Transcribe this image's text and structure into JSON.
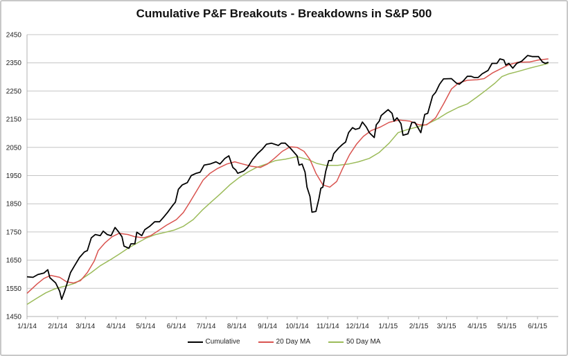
{
  "chart_data": {
    "type": "line",
    "title": "Cumulative P&F Breakouts - Breakdowns in S&P 500",
    "xlabel": "",
    "ylabel": "",
    "ylim": [
      1450,
      2450
    ],
    "xlim_days": [
      0,
      537
    ],
    "grid": true,
    "legend_position": "bottom",
    "y_ticks": [
      "1450",
      "1550",
      "1650",
      "1750",
      "1850",
      "1950",
      "2050",
      "2150",
      "2250",
      "2350",
      "2450"
    ],
    "x_ticks": [
      {
        "label": "1/1/14",
        "day": 0
      },
      {
        "label": "2/1/14",
        "day": 31
      },
      {
        "label": "3/1/14",
        "day": 59
      },
      {
        "label": "4/1/14",
        "day": 90
      },
      {
        "label": "5/1/14",
        "day": 120
      },
      {
        "label": "6/1/14",
        "day": 151
      },
      {
        "label": "7/1/14",
        "day": 181
      },
      {
        "label": "8/1/14",
        "day": 212
      },
      {
        "label": "9/1/14",
        "day": 243
      },
      {
        "label": "10/1/14",
        "day": 273
      },
      {
        "label": "11/1/14",
        "day": 304
      },
      {
        "label": "12/1/14",
        "day": 334
      },
      {
        "label": "1/1/15",
        "day": 365
      },
      {
        "label": "2/1/15",
        "day": 396
      },
      {
        "label": "3/1/15",
        "day": 424
      },
      {
        "label": "4/1/15",
        "day": 455
      },
      {
        "label": "5/1/15",
        "day": 485
      },
      {
        "label": "6/1/15",
        "day": 516
      }
    ],
    "series": [
      {
        "name": "Cumulative",
        "color": "#000000",
        "points": [
          [
            0,
            1591
          ],
          [
            6,
            1589
          ],
          [
            11,
            1599
          ],
          [
            17,
            1604
          ],
          [
            21,
            1616
          ],
          [
            23,
            1588
          ],
          [
            29,
            1569
          ],
          [
            33,
            1540
          ],
          [
            35,
            1511
          ],
          [
            38,
            1540
          ],
          [
            41,
            1573
          ],
          [
            44,
            1606
          ],
          [
            48,
            1630
          ],
          [
            53,
            1659
          ],
          [
            58,
            1679
          ],
          [
            61,
            1684
          ],
          [
            65,
            1729
          ],
          [
            69,
            1741
          ],
          [
            74,
            1737
          ],
          [
            77,
            1753
          ],
          [
            81,
            1741
          ],
          [
            85,
            1737
          ],
          [
            89,
            1766
          ],
          [
            92,
            1753
          ],
          [
            96,
            1733
          ],
          [
            98,
            1700
          ],
          [
            103,
            1692
          ],
          [
            105,
            1708
          ],
          [
            109,
            1708
          ],
          [
            111,
            1749
          ],
          [
            116,
            1737
          ],
          [
            119,
            1758
          ],
          [
            124,
            1770
          ],
          [
            129,
            1786
          ],
          [
            134,
            1786
          ],
          [
            138,
            1802
          ],
          [
            142,
            1819
          ],
          [
            147,
            1843
          ],
          [
            150,
            1856
          ],
          [
            153,
            1901
          ],
          [
            157,
            1917
          ],
          [
            162,
            1925
          ],
          [
            166,
            1950
          ],
          [
            171,
            1958
          ],
          [
            175,
            1962
          ],
          [
            179,
            1987
          ],
          [
            185,
            1991
          ],
          [
            191,
            1999
          ],
          [
            195,
            1991
          ],
          [
            200,
            2011
          ],
          [
            204,
            2020
          ],
          [
            208,
            1979
          ],
          [
            211,
            1970
          ],
          [
            213,
            1958
          ],
          [
            219,
            1966
          ],
          [
            223,
            1979
          ],
          [
            228,
            2007
          ],
          [
            233,
            2028
          ],
          [
            238,
            2044
          ],
          [
            242,
            2061
          ],
          [
            247,
            2065
          ],
          [
            254,
            2057
          ],
          [
            257,
            2065
          ],
          [
            261,
            2065
          ],
          [
            266,
            2048
          ],
          [
            270,
            2032
          ],
          [
            273,
            2020
          ],
          [
            275,
            1987
          ],
          [
            278,
            1991
          ],
          [
            281,
            1962
          ],
          [
            283,
            1909
          ],
          [
            286,
            1876
          ],
          [
            288,
            1820
          ],
          [
            292,
            1823
          ],
          [
            295,
            1868
          ],
          [
            297,
            1905
          ],
          [
            299,
            1909
          ],
          [
            302,
            1966
          ],
          [
            305,
            2003
          ],
          [
            308,
            2003
          ],
          [
            310,
            2028
          ],
          [
            315,
            2048
          ],
          [
            319,
            2061
          ],
          [
            322,
            2069
          ],
          [
            325,
            2102
          ],
          [
            329,
            2120
          ],
          [
            332,
            2114
          ],
          [
            336,
            2118
          ],
          [
            339,
            2140
          ],
          [
            343,
            2122
          ],
          [
            346,
            2102
          ],
          [
            351,
            2085
          ],
          [
            353,
            2130
          ],
          [
            356,
            2143
          ],
          [
            358,
            2163
          ],
          [
            362,
            2175
          ],
          [
            365,
            2184
          ],
          [
            369,
            2171
          ],
          [
            371,
            2143
          ],
          [
            374,
            2155
          ],
          [
            378,
            2134
          ],
          [
            380,
            2093
          ],
          [
            385,
            2098
          ],
          [
            389,
            2139
          ],
          [
            392,
            2139
          ],
          [
            398,
            2102
          ],
          [
            402,
            2167
          ],
          [
            405,
            2171
          ],
          [
            410,
            2233
          ],
          [
            413,
            2245
          ],
          [
            417,
            2274
          ],
          [
            421,
            2293
          ],
          [
            429,
            2294
          ],
          [
            434,
            2278
          ],
          [
            437,
            2274
          ],
          [
            441,
            2286
          ],
          [
            445,
            2302
          ],
          [
            449,
            2302
          ],
          [
            452,
            2298
          ],
          [
            456,
            2298
          ],
          [
            460,
            2311
          ],
          [
            466,
            2323
          ],
          [
            470,
            2348
          ],
          [
            475,
            2348
          ],
          [
            478,
            2364
          ],
          [
            482,
            2360
          ],
          [
            484,
            2342
          ],
          [
            487,
            2348
          ],
          [
            491,
            2331
          ],
          [
            495,
            2348
          ],
          [
            500,
            2356
          ],
          [
            506,
            2376
          ],
          [
            511,
            2372
          ],
          [
            517,
            2372
          ],
          [
            521,
            2353
          ],
          [
            524,
            2348
          ],
          [
            527,
            2352
          ]
        ]
      },
      {
        "name": "20 Day MA",
        "color": "#d9534f",
        "points": [
          [
            0,
            1532
          ],
          [
            10,
            1565
          ],
          [
            17,
            1585
          ],
          [
            24,
            1596
          ],
          [
            33,
            1589
          ],
          [
            40,
            1573
          ],
          [
            47,
            1569
          ],
          [
            54,
            1577
          ],
          [
            61,
            1606
          ],
          [
            68,
            1647
          ],
          [
            72,
            1684
          ],
          [
            79,
            1712
          ],
          [
            86,
            1733
          ],
          [
            93,
            1745
          ],
          [
            102,
            1741
          ],
          [
            109,
            1733
          ],
          [
            118,
            1729
          ],
          [
            125,
            1737
          ],
          [
            132,
            1753
          ],
          [
            141,
            1774
          ],
          [
            151,
            1794
          ],
          [
            158,
            1819
          ],
          [
            164,
            1852
          ],
          [
            171,
            1893
          ],
          [
            178,
            1934
          ],
          [
            185,
            1958
          ],
          [
            192,
            1974
          ],
          [
            202,
            1991
          ],
          [
            210,
            1999
          ],
          [
            218,
            1991
          ],
          [
            227,
            1983
          ],
          [
            236,
            1979
          ],
          [
            243,
            1991
          ],
          [
            250,
            2011
          ],
          [
            258,
            2036
          ],
          [
            266,
            2052
          ],
          [
            273,
            2050
          ],
          [
            280,
            2036
          ],
          [
            286,
            2007
          ],
          [
            292,
            1958
          ],
          [
            299,
            1917
          ],
          [
            306,
            1909
          ],
          [
            313,
            1929
          ],
          [
            319,
            1975
          ],
          [
            326,
            2024
          ],
          [
            333,
            2061
          ],
          [
            340,
            2089
          ],
          [
            348,
            2110
          ],
          [
            357,
            2122
          ],
          [
            366,
            2139
          ],
          [
            376,
            2147
          ],
          [
            387,
            2143
          ],
          [
            396,
            2130
          ],
          [
            404,
            2130
          ],
          [
            413,
            2155
          ],
          [
            421,
            2204
          ],
          [
            429,
            2257
          ],
          [
            436,
            2278
          ],
          [
            445,
            2288
          ],
          [
            455,
            2290
          ],
          [
            462,
            2294
          ],
          [
            471,
            2315
          ],
          [
            480,
            2331
          ],
          [
            487,
            2343
          ],
          [
            496,
            2352
          ],
          [
            508,
            2353
          ],
          [
            517,
            2360
          ],
          [
            527,
            2364
          ]
        ]
      },
      {
        "name": "50 Day MA",
        "color": "#9bbb59",
        "points": [
          [
            0,
            1493
          ],
          [
            10,
            1515
          ],
          [
            19,
            1534
          ],
          [
            28,
            1548
          ],
          [
            35,
            1555
          ],
          [
            42,
            1561
          ],
          [
            49,
            1569
          ],
          [
            56,
            1585
          ],
          [
            65,
            1606
          ],
          [
            74,
            1630
          ],
          [
            84,
            1651
          ],
          [
            93,
            1671
          ],
          [
            102,
            1692
          ],
          [
            112,
            1712
          ],
          [
            121,
            1729
          ],
          [
            130,
            1741
          ],
          [
            140,
            1749
          ],
          [
            149,
            1757
          ],
          [
            158,
            1770
          ],
          [
            168,
            1794
          ],
          [
            177,
            1827
          ],
          [
            186,
            1856
          ],
          [
            195,
            1884
          ],
          [
            205,
            1917
          ],
          [
            214,
            1942
          ],
          [
            223,
            1962
          ],
          [
            232,
            1979
          ],
          [
            242,
            1991
          ],
          [
            251,
            2003
          ],
          [
            261,
            2008
          ],
          [
            273,
            2017
          ],
          [
            284,
            2007
          ],
          [
            293,
            1993
          ],
          [
            302,
            1986
          ],
          [
            314,
            1986
          ],
          [
            325,
            1991
          ],
          [
            335,
            1999
          ],
          [
            346,
            2011
          ],
          [
            356,
            2032
          ],
          [
            366,
            2065
          ],
          [
            375,
            2102
          ],
          [
            385,
            2114
          ],
          [
            394,
            2122
          ],
          [
            403,
            2130
          ],
          [
            415,
            2151
          ],
          [
            424,
            2171
          ],
          [
            436,
            2192
          ],
          [
            445,
            2204
          ],
          [
            455,
            2229
          ],
          [
            464,
            2253
          ],
          [
            473,
            2278
          ],
          [
            480,
            2301
          ],
          [
            487,
            2311
          ],
          [
            496,
            2319
          ],
          [
            508,
            2331
          ],
          [
            517,
            2339
          ],
          [
            527,
            2348
          ]
        ]
      }
    ]
  }
}
